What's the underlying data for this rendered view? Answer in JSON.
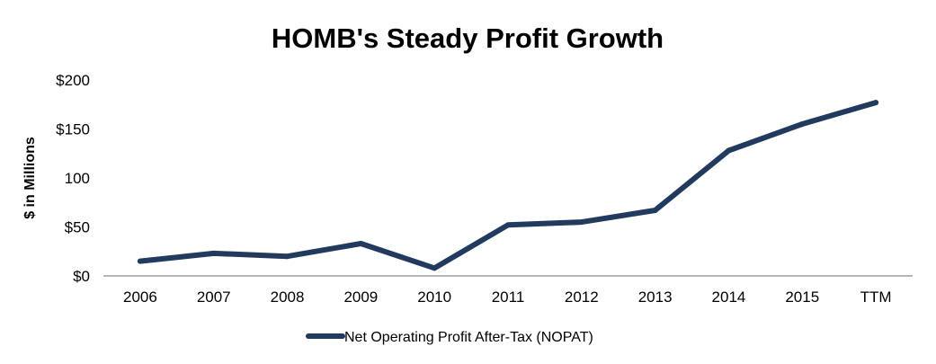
{
  "chart_data": {
    "type": "line",
    "title": "HOMB's Steady Profit Growth",
    "xlabel": "",
    "ylabel": "$ in Millions",
    "categories": [
      "2006",
      "2007",
      "2008",
      "2009",
      "2010",
      "2011",
      "2012",
      "2013",
      "2014",
      "2015",
      "TTM"
    ],
    "series": [
      {
        "name": "Net Operating Profit After-Tax (NOPAT)",
        "color": "#223a5e",
        "values": [
          15,
          23,
          20,
          33,
          8,
          52,
          55,
          67,
          128,
          155,
          177
        ]
      }
    ],
    "ylim": [
      0,
      200
    ],
    "yticks": [
      0,
      50,
      100,
      150,
      200
    ],
    "ytick_labels": [
      "$0",
      "$50",
      "100",
      "$150",
      "$200"
    ],
    "grid": false,
    "legend": "bottom"
  }
}
